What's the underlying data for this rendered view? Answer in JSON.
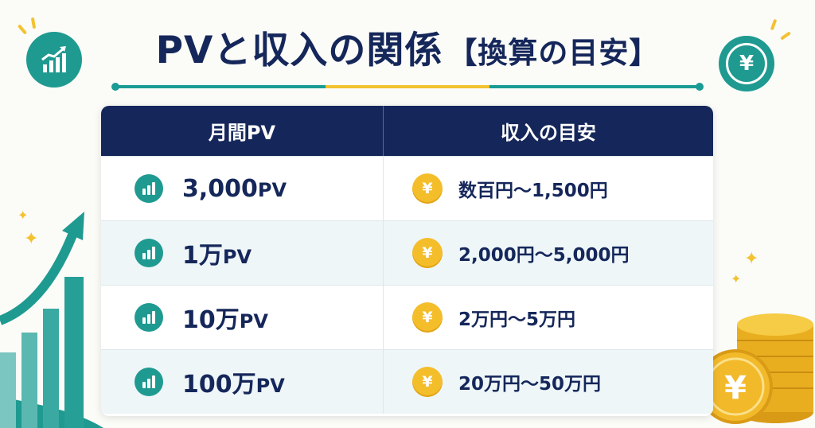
{
  "title": {
    "main": "PVと収入の関係",
    "sub": "【換算の目安】"
  },
  "icons": {
    "left_badge": "growth-chart-icon",
    "right_badge": "yen-icon",
    "right_badge_symbol": "¥"
  },
  "table": {
    "headers": {
      "pv": "月間PV",
      "income": "収入の目安"
    },
    "rows": [
      {
        "pv_value": "3,000",
        "pv_unit": "PV",
        "income": "数百円〜1,500円"
      },
      {
        "pv_value": "1万",
        "pv_unit": "PV",
        "income": "2,000円〜5,000円"
      },
      {
        "pv_value": "10万",
        "pv_unit": "PV",
        "income": "2万円〜5万円"
      },
      {
        "pv_value": "100万",
        "pv_unit": "PV",
        "income": "20万円〜50万円"
      }
    ],
    "yen_symbol": "¥"
  },
  "colors": {
    "navy": "#15275a",
    "teal": "#1f9a91",
    "gold": "#f4bd2a",
    "row_alt": "#eef6f8"
  }
}
